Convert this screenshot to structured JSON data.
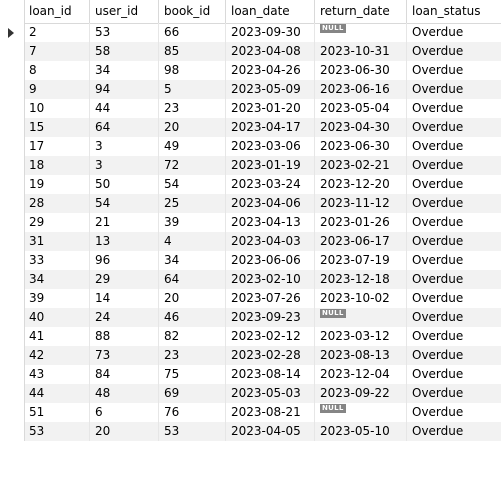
{
  "table": {
    "columns": [
      "loan_id",
      "user_id",
      "book_id",
      "loan_date",
      "return_date",
      "loan_status"
    ],
    "null_label": "NULL",
    "rows": [
      [
        "2",
        "53",
        "66",
        "2023-09-30",
        null,
        "Overdue"
      ],
      [
        "7",
        "58",
        "85",
        "2023-04-08",
        "2023-10-31",
        "Overdue"
      ],
      [
        "8",
        "34",
        "98",
        "2023-04-26",
        "2023-06-30",
        "Overdue"
      ],
      [
        "9",
        "94",
        "5",
        "2023-05-09",
        "2023-06-16",
        "Overdue"
      ],
      [
        "10",
        "44",
        "23",
        "2023-01-20",
        "2023-05-04",
        "Overdue"
      ],
      [
        "15",
        "64",
        "20",
        "2023-04-17",
        "2023-04-30",
        "Overdue"
      ],
      [
        "17",
        "3",
        "49",
        "2023-03-06",
        "2023-06-30",
        "Overdue"
      ],
      [
        "18",
        "3",
        "72",
        "2023-01-19",
        "2023-02-21",
        "Overdue"
      ],
      [
        "19",
        "50",
        "54",
        "2023-03-24",
        "2023-12-20",
        "Overdue"
      ],
      [
        "28",
        "54",
        "25",
        "2023-04-06",
        "2023-11-12",
        "Overdue"
      ],
      [
        "29",
        "21",
        "39",
        "2023-04-13",
        "2023-01-26",
        "Overdue"
      ],
      [
        "31",
        "13",
        "4",
        "2023-04-03",
        "2023-06-17",
        "Overdue"
      ],
      [
        "33",
        "96",
        "34",
        "2023-06-06",
        "2023-07-19",
        "Overdue"
      ],
      [
        "34",
        "29",
        "64",
        "2023-02-10",
        "2023-12-18",
        "Overdue"
      ],
      [
        "39",
        "14",
        "20",
        "2023-07-26",
        "2023-10-02",
        "Overdue"
      ],
      [
        "40",
        "24",
        "46",
        "2023-09-23",
        null,
        "Overdue"
      ],
      [
        "41",
        "88",
        "82",
        "2023-02-12",
        "2023-03-12",
        "Overdue"
      ],
      [
        "42",
        "73",
        "23",
        "2023-02-28",
        "2023-08-13",
        "Overdue"
      ],
      [
        "43",
        "84",
        "75",
        "2023-08-14",
        "2023-12-04",
        "Overdue"
      ],
      [
        "44",
        "48",
        "69",
        "2023-05-03",
        "2023-09-22",
        "Overdue"
      ],
      [
        "51",
        "6",
        "76",
        "2023-08-21",
        null,
        "Overdue"
      ],
      [
        "53",
        "20",
        "53",
        "2023-04-05",
        "2023-05-10",
        "Overdue"
      ]
    ],
    "current_row": 0
  },
  "colors": {
    "alt_row": "#f2f2f2",
    "null_badge": "#858585",
    "grid_line": "#d9d9d9"
  }
}
